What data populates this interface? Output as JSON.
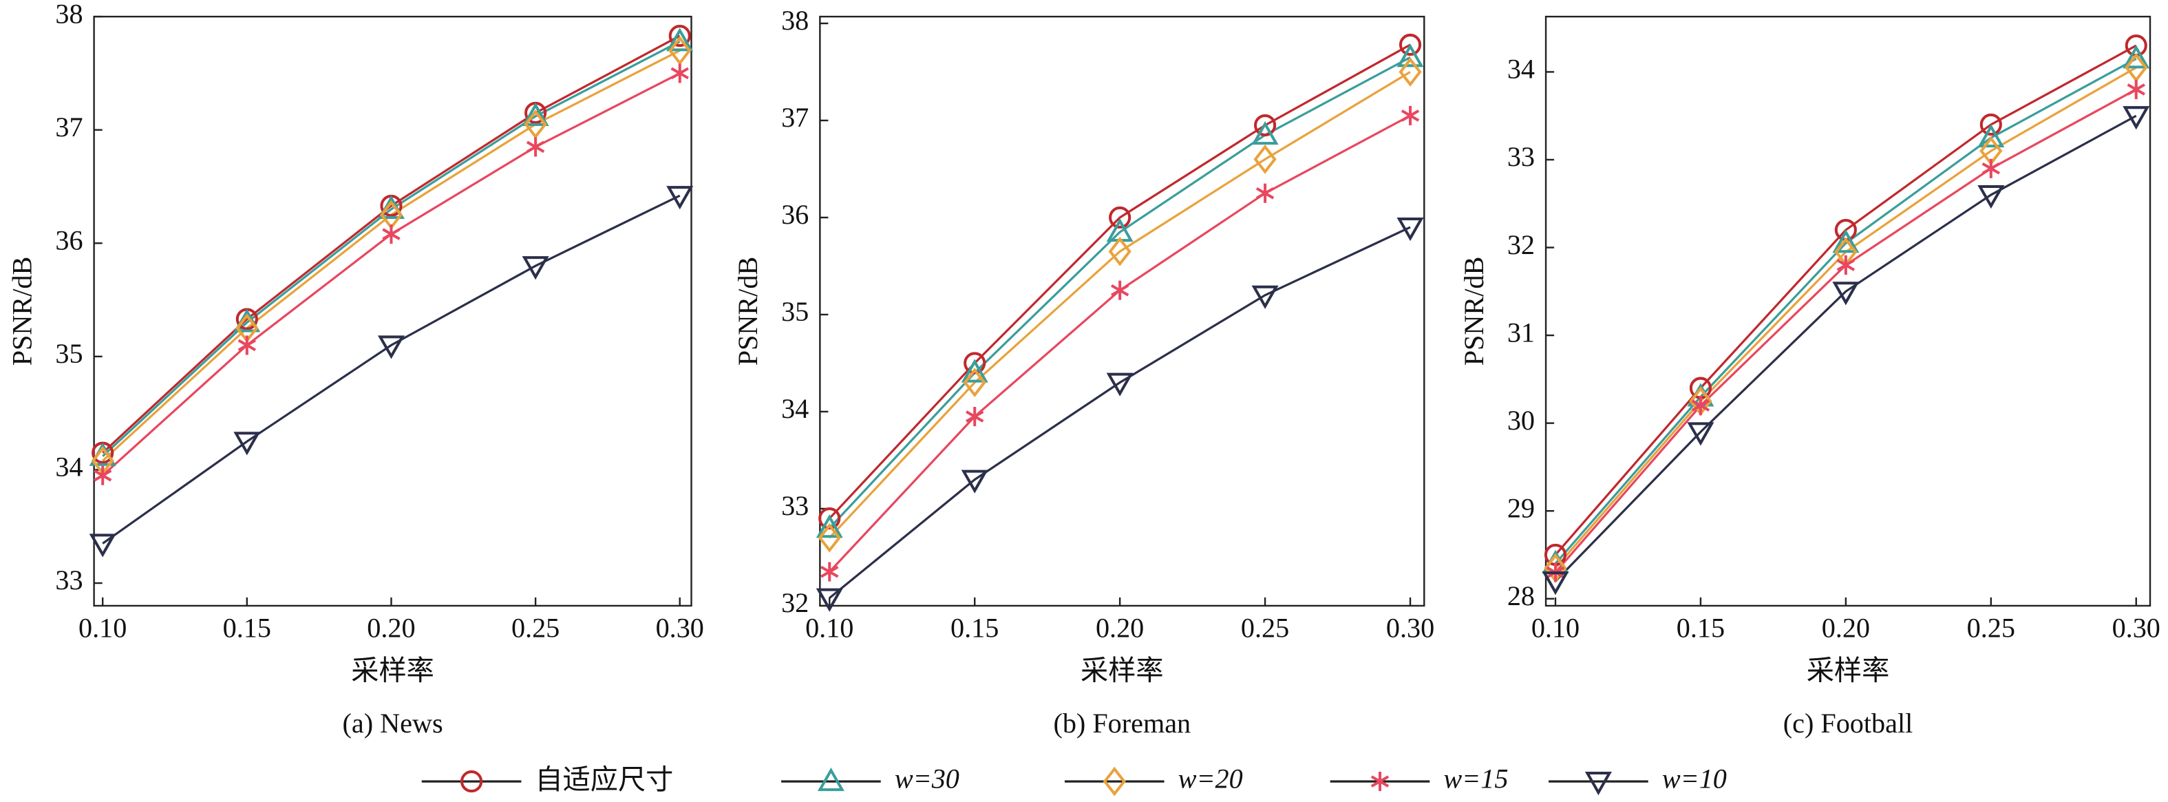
{
  "chart_data": [
    {
      "type": "line",
      "title": "(a) News",
      "x_label": "采样率",
      "y_label": "PSNR/dB",
      "x": [
        0.1,
        0.15,
        0.2,
        0.25,
        0.3
      ],
      "xlim": [
        0.097,
        0.304
      ],
      "xticks": [
        {
          "value": 0.1,
          "label": "0.10"
        },
        {
          "value": 0.15,
          "label": "0.15"
        },
        {
          "value": 0.2,
          "label": "0.20"
        },
        {
          "value": 0.25,
          "label": "0.25"
        },
        {
          "value": 0.3,
          "label": "0.30"
        }
      ],
      "ylim": [
        32.8,
        38
      ],
      "yticks": [
        33,
        34,
        35,
        36,
        37,
        38
      ],
      "series": [
        {
          "name": "自适应尺寸",
          "color": "#c0282d",
          "marker": "circle",
          "values": [
            34.15,
            35.33,
            36.33,
            37.15,
            37.83
          ]
        },
        {
          "name": "w=30",
          "color": "#3a9e9a",
          "marker": "triangle-up",
          "values": [
            34.12,
            35.3,
            36.3,
            37.12,
            37.78
          ]
        },
        {
          "name": "w=20",
          "color": "#e9a23b",
          "marker": "diamond",
          "values": [
            34.08,
            35.25,
            36.25,
            37.05,
            37.7
          ]
        },
        {
          "name": "w=15",
          "color": "#e8475f",
          "marker": "asterisk",
          "values": [
            33.95,
            35.1,
            36.08,
            36.85,
            37.5
          ]
        },
        {
          "name": "w=10",
          "color": "#2b2f4a",
          "marker": "triangle-down",
          "values": [
            33.35,
            34.25,
            35.1,
            35.8,
            36.42
          ]
        }
      ]
    },
    {
      "type": "line",
      "title": "(b) Foreman",
      "x_label": "采样率",
      "y_label": "PSNR/dB",
      "x": [
        0.1,
        0.15,
        0.2,
        0.25,
        0.3
      ],
      "xlim": [
        0.0967,
        0.3048
      ],
      "xticks": [
        {
          "value": 0.1,
          "label": "0.10"
        },
        {
          "value": 0.15,
          "label": "0.15"
        },
        {
          "value": 0.2,
          "label": "0.20"
        },
        {
          "value": 0.25,
          "label": "0.25"
        },
        {
          "value": 0.3,
          "label": "0.30"
        }
      ],
      "ylim": [
        32,
        38.07
      ],
      "yticks": [
        32,
        33,
        34,
        35,
        36,
        37,
        38
      ],
      "series": [
        {
          "name": "自适应尺寸",
          "color": "#c0282d",
          "marker": "circle",
          "values": [
            32.9,
            34.5,
            36.0,
            36.95,
            37.78
          ]
        },
        {
          "name": "w=30",
          "color": "#3a9e9a",
          "marker": "triangle-up",
          "values": [
            32.8,
            34.4,
            35.85,
            36.85,
            37.65
          ]
        },
        {
          "name": "w=20",
          "color": "#e9a23b",
          "marker": "diamond",
          "values": [
            32.7,
            34.3,
            35.65,
            36.6,
            37.5
          ]
        },
        {
          "name": "w=15",
          "color": "#e8475f",
          "marker": "asterisk",
          "values": [
            32.35,
            33.95,
            35.25,
            36.25,
            37.05
          ]
        },
        {
          "name": "w=10",
          "color": "#2b2f4a",
          "marker": "triangle-down",
          "values": [
            32.08,
            33.3,
            34.3,
            35.2,
            35.9
          ]
        }
      ]
    },
    {
      "type": "line",
      "title": "(c) Football",
      "x_label": "采样率",
      "y_label": "PSNR/dB",
      "x": [
        0.1,
        0.15,
        0.2,
        0.25,
        0.3
      ],
      "xlim": [
        0.0967,
        0.3048
      ],
      "xticks": [
        {
          "value": 0.1,
          "label": "0.10"
        },
        {
          "value": 0.15,
          "label": "0.15"
        },
        {
          "value": 0.2,
          "label": "0.20"
        },
        {
          "value": 0.25,
          "label": "0.25"
        },
        {
          "value": 0.3,
          "label": "0.30"
        }
      ],
      "ylim": [
        27.92,
        34.63
      ],
      "yticks": [
        28,
        29,
        30,
        31,
        32,
        33,
        34
      ],
      "series": [
        {
          "name": "自适应尺寸",
          "color": "#c0282d",
          "marker": "circle",
          "values": [
            28.5,
            30.4,
            32.2,
            33.4,
            34.3
          ]
        },
        {
          "name": "w=30",
          "color": "#3a9e9a",
          "marker": "triangle-up",
          "values": [
            28.4,
            30.3,
            32.05,
            33.25,
            34.15
          ]
        },
        {
          "name": "w=20",
          "color": "#e9a23b",
          "marker": "diamond",
          "values": [
            28.35,
            30.25,
            31.95,
            33.1,
            34.05
          ]
        },
        {
          "name": "w=15",
          "color": "#e8475f",
          "marker": "asterisk",
          "values": [
            28.3,
            30.2,
            31.8,
            32.9,
            33.8
          ]
        },
        {
          "name": "w=10",
          "color": "#2b2f4a",
          "marker": "triangle-down",
          "values": [
            28.2,
            29.9,
            31.5,
            32.6,
            33.5
          ]
        }
      ]
    }
  ]
}
